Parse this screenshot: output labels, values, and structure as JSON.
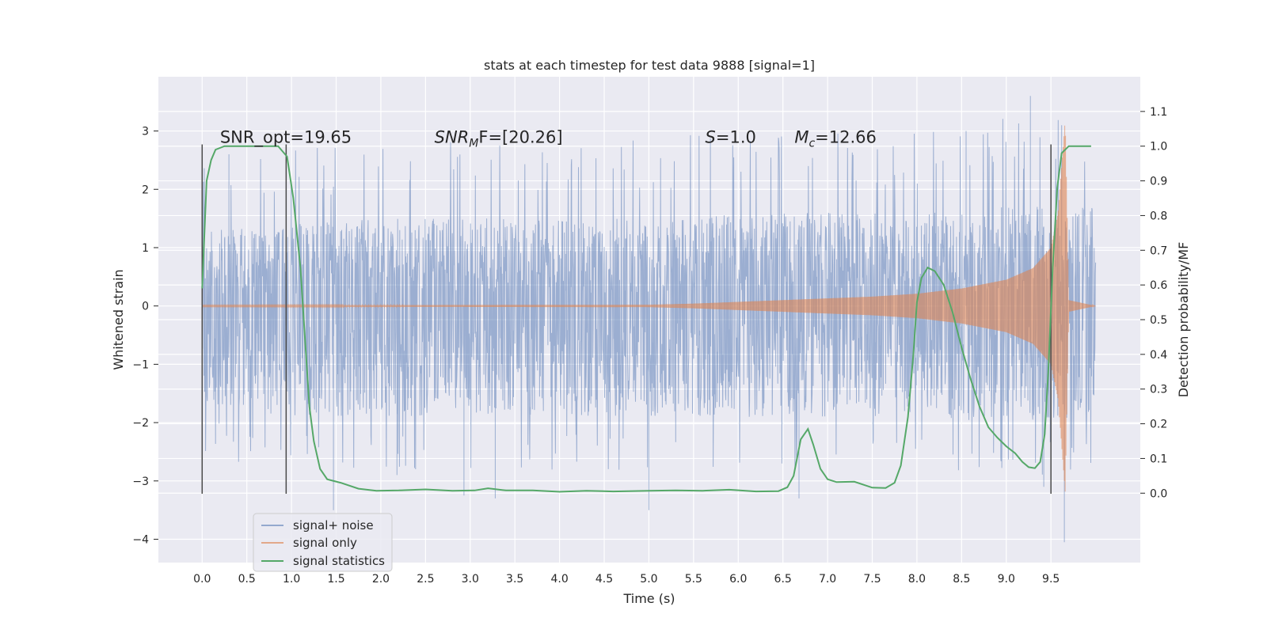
{
  "chart_data": {
    "type": "line",
    "title": "stats at each timestep for test data 9888 [signal=1]",
    "xlabel": "Time (s)",
    "ylabel_left": "Whitened strain",
    "ylabel_right": "Detection probability/MF",
    "xlim": [
      -0.49,
      10.5
    ],
    "ylim_left": [
      -4.4,
      3.93
    ],
    "ylim_right": [
      -0.2,
      1.2
    ],
    "x_ticks": [
      "0.0",
      "0.5",
      "1.0",
      "1.5",
      "2.0",
      "2.5",
      "3.0",
      "3.5",
      "4.0",
      "4.5",
      "5.0",
      "5.5",
      "6.0",
      "6.5",
      "7.0",
      "7.5",
      "8.0",
      "8.5",
      "9.0",
      "9.5"
    ],
    "x_tick_values": [
      0.0,
      0.5,
      1.0,
      1.5,
      2.0,
      2.5,
      3.0,
      3.5,
      4.0,
      4.5,
      5.0,
      5.5,
      6.0,
      6.5,
      7.0,
      7.5,
      8.0,
      8.5,
      9.0,
      9.5
    ],
    "y_ticks_left": [
      "3",
      "2",
      "1",
      "0",
      "−1",
      "−2",
      "−3",
      "−4"
    ],
    "y_tick_values_left": [
      3,
      2,
      1,
      0,
      -1,
      -2,
      -3,
      -4
    ],
    "y_ticks_right": [
      "1.1",
      "1.0",
      "0.9",
      "0.8",
      "0.7",
      "0.6",
      "0.5",
      "0.4",
      "0.3",
      "0.2",
      "0.1",
      "0.0"
    ],
    "y_tick_values_right": [
      1.1,
      1.0,
      0.9,
      0.8,
      0.7,
      0.6,
      0.5,
      0.4,
      0.3,
      0.2,
      0.1,
      0.0
    ],
    "grid": true,
    "legend_position": "lower-left",
    "legend": [
      "signal+ noise",
      "signal only",
      "signal statistics"
    ],
    "colors": {
      "noise": "#4c72b0",
      "signal": "#dd8452",
      "stats": "#55a868",
      "vlines": "#4a4a4a",
      "background": "#eaeaf2"
    },
    "annotations": [
      {
        "prefix": "SNR_opt=19.65",
        "italic": "",
        "sub": "",
        "suffix": "",
        "x": 0.2
      },
      {
        "prefix": "",
        "italic": "SNR",
        "sub": "M",
        "suffix": "F=[20.26]",
        "x": 2.6
      },
      {
        "prefix": "",
        "italic": "S",
        "sub": "",
        "suffix": "=1.0",
        "x": 5.63
      },
      {
        "prefix": "",
        "italic": "M",
        "sub": "c",
        "suffix": "=12.66",
        "x": 6.63
      }
    ],
    "annotation_y_right": 1.01,
    "vertical_lines": [
      0.0,
      0.94,
      9.5
    ],
    "vertical_lines_range_left": [
      -3.22,
      2.77
    ],
    "time_range": [
      0.0,
      10.0
    ],
    "noise_envelope": [
      {
        "x": 0.0,
        "hi": 1.3,
        "lo": -1.7
      },
      {
        "x": 1.0,
        "hi": 1.4,
        "lo": -1.9
      },
      {
        "x": 2.0,
        "hi": 1.5,
        "lo": -1.9
      },
      {
        "x": 3.0,
        "hi": 1.5,
        "lo": -1.9
      },
      {
        "x": 4.0,
        "hi": 1.5,
        "lo": -1.9
      },
      {
        "x": 5.0,
        "hi": 1.5,
        "lo": -1.9
      },
      {
        "x": 6.0,
        "hi": 1.6,
        "lo": -1.9
      },
      {
        "x": 7.0,
        "hi": 1.6,
        "lo": -1.9
      },
      {
        "x": 8.0,
        "hi": 1.6,
        "lo": -1.9
      },
      {
        "x": 9.0,
        "hi": 1.7,
        "lo": -2.0
      },
      {
        "x": 10.0,
        "hi": 1.7,
        "lo": -1.9
      }
    ],
    "noise_spikes": [
      {
        "x": 1.47,
        "y": -3.5
      },
      {
        "x": 2.18,
        "y": -2.9
      },
      {
        "x": 2.93,
        "y": -3.25
      },
      {
        "x": 3.28,
        "y": -3.3
      },
      {
        "x": 5.0,
        "y": -3.5
      },
      {
        "x": 6.68,
        "y": -3.3
      },
      {
        "x": 9.27,
        "y": 3.6
      },
      {
        "x": 9.42,
        "y": -3.1
      },
      {
        "x": 9.62,
        "y": 3.1
      },
      {
        "x": 9.65,
        "y": -4.05
      },
      {
        "x": 0.3,
        "y": 2.6
      },
      {
        "x": 8.55,
        "y": 3.0
      }
    ],
    "signal_envelope": [
      {
        "x": 0.0,
        "amp": 0.01
      },
      {
        "x": 5.0,
        "amp": 0.02
      },
      {
        "x": 5.5,
        "amp": 0.04
      },
      {
        "x": 6.0,
        "amp": 0.07
      },
      {
        "x": 6.5,
        "amp": 0.1
      },
      {
        "x": 7.0,
        "amp": 0.13
      },
      {
        "x": 7.5,
        "amp": 0.16
      },
      {
        "x": 8.0,
        "amp": 0.21
      },
      {
        "x": 8.5,
        "amp": 0.3
      },
      {
        "x": 9.0,
        "amp": 0.45
      },
      {
        "x": 9.3,
        "amp": 0.65
      },
      {
        "x": 9.5,
        "amp": 1.0
      },
      {
        "x": 9.58,
        "amp": 1.6
      },
      {
        "x": 9.62,
        "amp": 2.4
      },
      {
        "x": 9.66,
        "amp": 3.2
      },
      {
        "x": 9.7,
        "amp": 0.1
      },
      {
        "x": 10.0,
        "amp": 0.0
      }
    ],
    "stats_series": [
      {
        "x": 0.0,
        "y": 0.59
      },
      {
        "x": 0.05,
        "y": 0.9
      },
      {
        "x": 0.1,
        "y": 0.96
      },
      {
        "x": 0.15,
        "y": 0.99
      },
      {
        "x": 0.25,
        "y": 1.0
      },
      {
        "x": 0.85,
        "y": 1.0
      },
      {
        "x": 0.95,
        "y": 0.97
      },
      {
        "x": 1.02,
        "y": 0.85
      },
      {
        "x": 1.1,
        "y": 0.65
      },
      {
        "x": 1.15,
        "y": 0.45
      },
      {
        "x": 1.2,
        "y": 0.25
      },
      {
        "x": 1.25,
        "y": 0.15
      },
      {
        "x": 1.32,
        "y": 0.07
      },
      {
        "x": 1.4,
        "y": 0.04
      },
      {
        "x": 1.55,
        "y": 0.03
      },
      {
        "x": 1.75,
        "y": 0.013
      },
      {
        "x": 1.95,
        "y": 0.007
      },
      {
        "x": 2.2,
        "y": 0.008
      },
      {
        "x": 2.5,
        "y": 0.011
      },
      {
        "x": 2.8,
        "y": 0.007
      },
      {
        "x": 3.05,
        "y": 0.008
      },
      {
        "x": 3.2,
        "y": 0.014
      },
      {
        "x": 3.4,
        "y": 0.008
      },
      {
        "x": 3.7,
        "y": 0.008
      },
      {
        "x": 4.0,
        "y": 0.004
      },
      {
        "x": 4.3,
        "y": 0.007
      },
      {
        "x": 4.6,
        "y": 0.005
      },
      {
        "x": 5.0,
        "y": 0.007
      },
      {
        "x": 5.3,
        "y": 0.008
      },
      {
        "x": 5.6,
        "y": 0.007
      },
      {
        "x": 5.9,
        "y": 0.01
      },
      {
        "x": 6.2,
        "y": 0.005
      },
      {
        "x": 6.45,
        "y": 0.006
      },
      {
        "x": 6.55,
        "y": 0.017
      },
      {
        "x": 6.62,
        "y": 0.05
      },
      {
        "x": 6.7,
        "y": 0.155
      },
      {
        "x": 6.78,
        "y": 0.185
      },
      {
        "x": 6.84,
        "y": 0.14
      },
      {
        "x": 6.92,
        "y": 0.07
      },
      {
        "x": 7.0,
        "y": 0.04
      },
      {
        "x": 7.1,
        "y": 0.032
      },
      {
        "x": 7.3,
        "y": 0.033
      },
      {
        "x": 7.5,
        "y": 0.016
      },
      {
        "x": 7.65,
        "y": 0.015
      },
      {
        "x": 7.75,
        "y": 0.03
      },
      {
        "x": 7.82,
        "y": 0.08
      },
      {
        "x": 7.9,
        "y": 0.22
      },
      {
        "x": 7.96,
        "y": 0.4
      },
      {
        "x": 8.0,
        "y": 0.55
      },
      {
        "x": 8.05,
        "y": 0.62
      },
      {
        "x": 8.12,
        "y": 0.65
      },
      {
        "x": 8.2,
        "y": 0.64
      },
      {
        "x": 8.3,
        "y": 0.6
      },
      {
        "x": 8.4,
        "y": 0.52
      },
      {
        "x": 8.5,
        "y": 0.42
      },
      {
        "x": 8.6,
        "y": 0.33
      },
      {
        "x": 8.7,
        "y": 0.25
      },
      {
        "x": 8.8,
        "y": 0.19
      },
      {
        "x": 8.9,
        "y": 0.16
      },
      {
        "x": 9.0,
        "y": 0.135
      },
      {
        "x": 9.1,
        "y": 0.115
      },
      {
        "x": 9.18,
        "y": 0.09
      },
      {
        "x": 9.25,
        "y": 0.075
      },
      {
        "x": 9.32,
        "y": 0.072
      },
      {
        "x": 9.38,
        "y": 0.09
      },
      {
        "x": 9.43,
        "y": 0.17
      },
      {
        "x": 9.47,
        "y": 0.35
      },
      {
        "x": 9.52,
        "y": 0.65
      },
      {
        "x": 9.57,
        "y": 0.88
      },
      {
        "x": 9.62,
        "y": 0.98
      },
      {
        "x": 9.7,
        "y": 1.0
      },
      {
        "x": 9.95,
        "y": 1.0
      }
    ]
  }
}
